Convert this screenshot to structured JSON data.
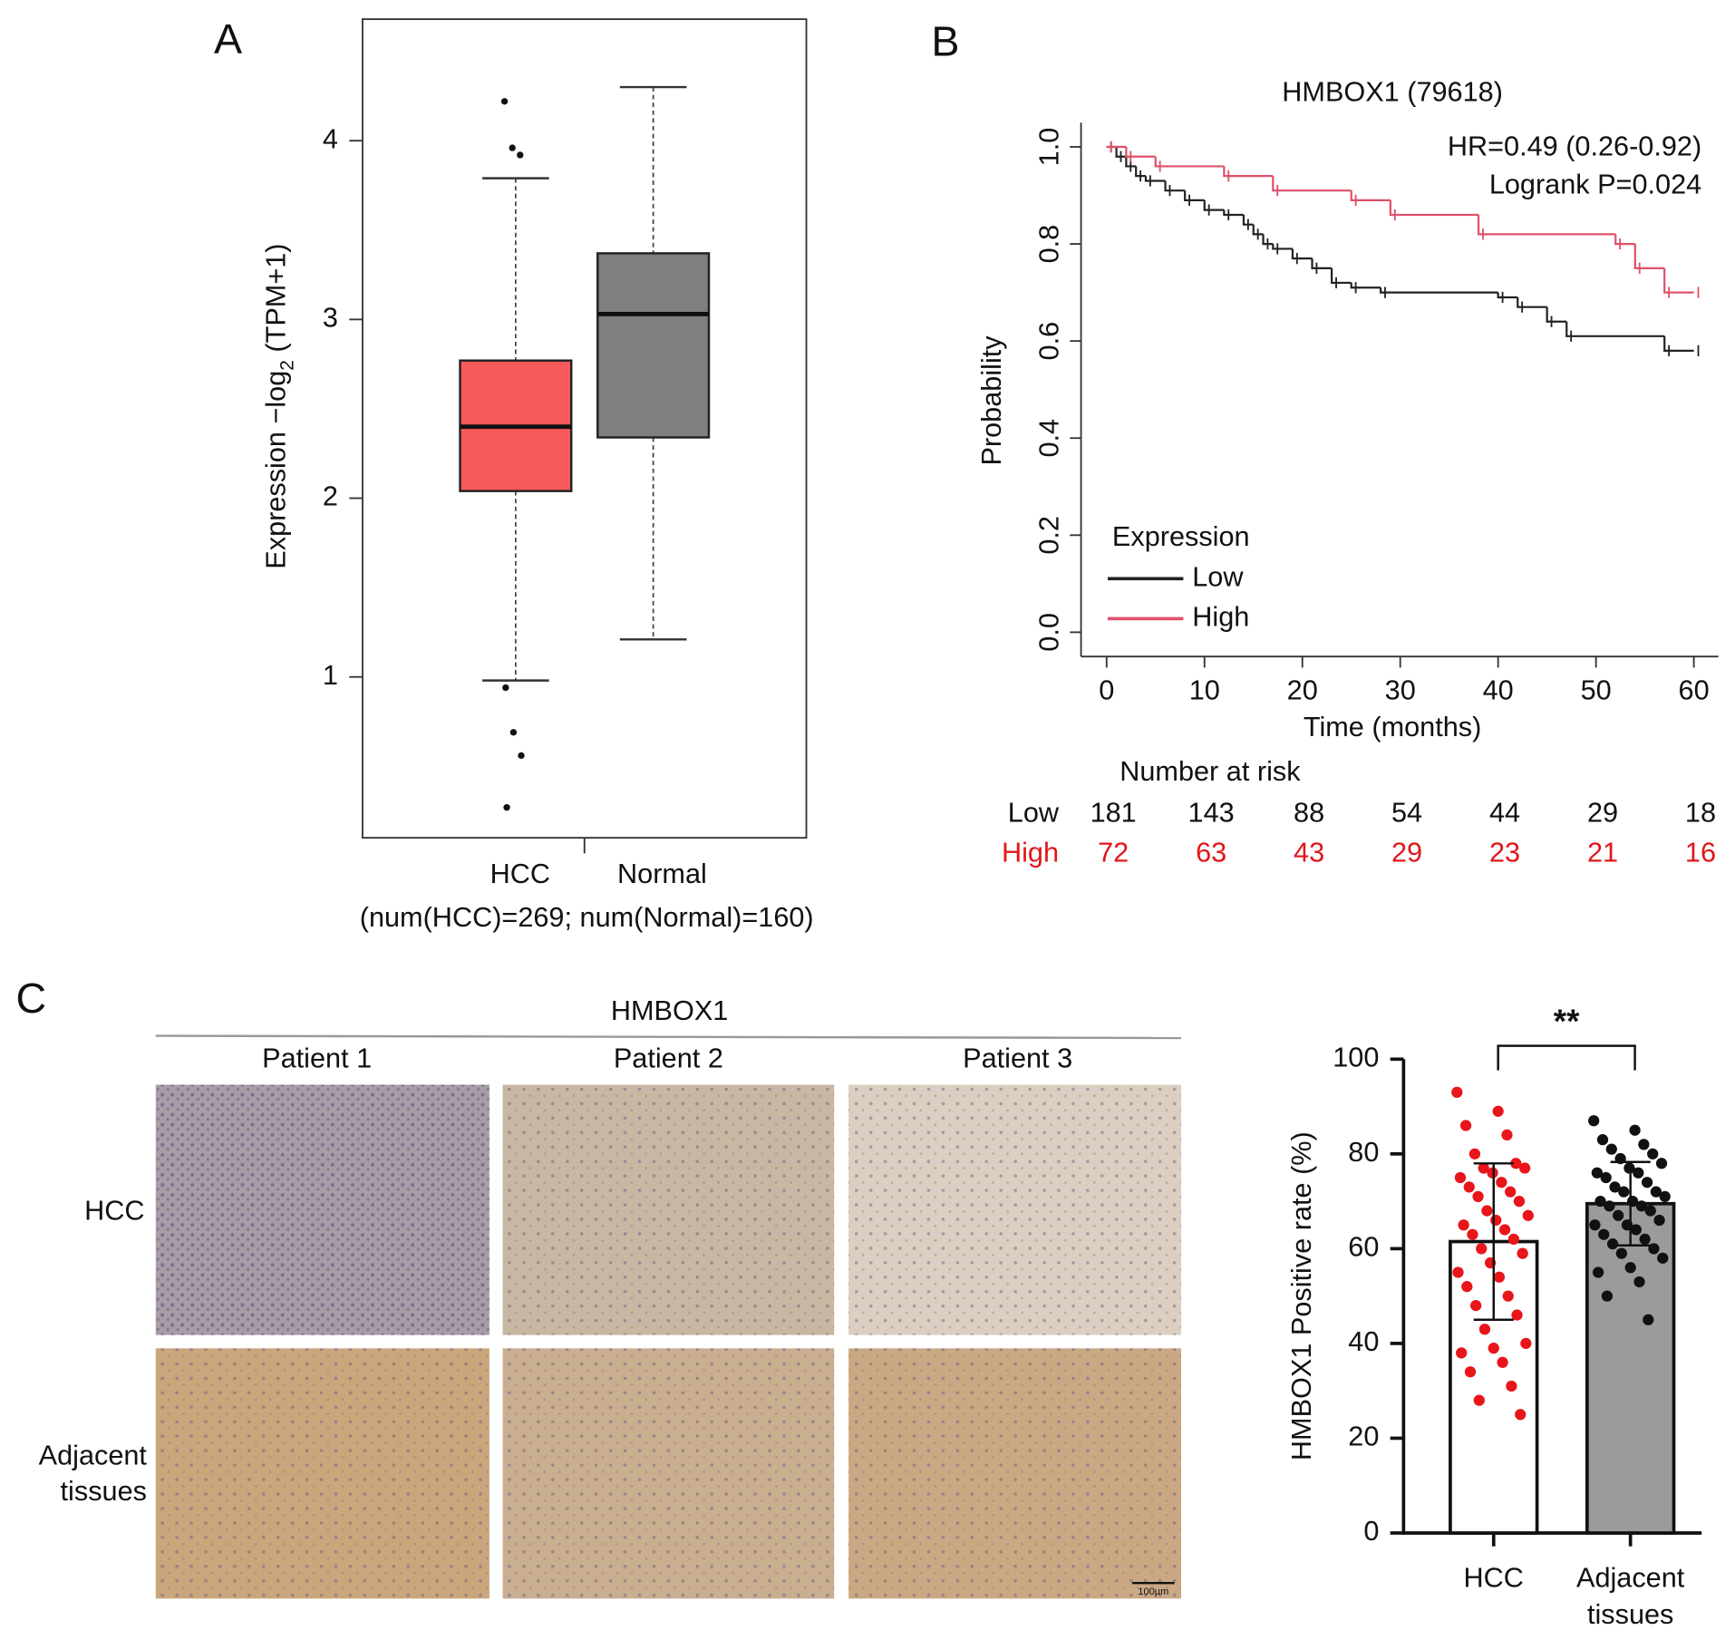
{
  "panel_labels": [
    "A",
    "B",
    "C"
  ],
  "image_panel": {
    "title": "HMBOX1",
    "columns": [
      "Patient 1",
      "Patient 2",
      "Patient 3"
    ],
    "rows": [
      [
        "HCC"
      ],
      [
        "Adjacent",
        "tissues"
      ]
    ],
    "scale_bar": "100µm"
  },
  "chart_data": [
    {
      "type": "box",
      "categories": [
        "HCC",
        "Normal"
      ],
      "xlabel": "(num(HCC)=269; num(Normal)=160)",
      "ylabel": [
        "Expression −log",
        "2",
        " (TPM+1)"
      ],
      "ylim": [
        0.1,
        4.68
      ],
      "yticks": [
        1,
        2,
        3,
        4
      ],
      "boxes": [
        {
          "whislo": 0.98,
          "q1": 2.04,
          "med": 2.4,
          "q3": 2.77,
          "whishi": 3.79,
          "fliers": [
            4.22,
            3.96,
            3.92,
            0.94,
            0.69,
            0.56,
            0.27
          ],
          "color": "#f8595b"
        },
        {
          "whislo": 1.21,
          "q1": 2.34,
          "med": 3.03,
          "q3": 3.37,
          "whishi": 4.3,
          "fliers": [],
          "color": "#7f7f7f"
        }
      ]
    },
    {
      "type": "km",
      "title": "HMBOX1 (79618)",
      "annotations": [
        "HR=0.49 (0.26-0.92)",
        "Logrank P=0.024"
      ],
      "xlabel": "Time (months)",
      "ylabel": "Probability",
      "xlim": [
        -2.6,
        62.5
      ],
      "ylim": [
        -0.05,
        1.05
      ],
      "xticks": [
        0,
        10,
        20,
        30,
        40,
        50,
        60
      ],
      "yticks": [
        {
          "value": 0,
          "label": "0.0"
        },
        {
          "value": 0.2,
          "label": "0.2"
        },
        {
          "value": 0.4,
          "label": "0.4"
        },
        {
          "value": 0.6,
          "label": "0.6"
        },
        {
          "value": 0.8,
          "label": "0.8"
        },
        {
          "value": 1,
          "label": "1.0"
        }
      ],
      "legend_title": "Expression",
      "legend": "lower left",
      "series": [
        {
          "name": "Low",
          "color": "#222222",
          "x": [
            0,
            1,
            2,
            3,
            4,
            6,
            8,
            10,
            12,
            14,
            15,
            16,
            17,
            19,
            21,
            23,
            25,
            28,
            40,
            42,
            45,
            47,
            57,
            60
          ],
          "values": [
            1.0,
            0.98,
            0.96,
            0.94,
            0.93,
            0.91,
            0.89,
            0.87,
            0.86,
            0.84,
            0.82,
            0.8,
            0.79,
            0.77,
            0.75,
            0.72,
            0.71,
            0.7,
            0.69,
            0.67,
            0.64,
            0.61,
            0.58,
            0.58
          ]
        },
        {
          "name": "High",
          "color": "#e0506a",
          "x": [
            0,
            2,
            5,
            12,
            17,
            25,
            29,
            38,
            52,
            54,
            57,
            60
          ],
          "values": [
            1.0,
            0.98,
            0.96,
            0.94,
            0.91,
            0.89,
            0.86,
            0.82,
            0.8,
            0.75,
            0.7,
            0.7
          ]
        }
      ],
      "risk_table": {
        "title": "Number at risk",
        "rows": [
          {
            "name": "Low",
            "color": "#111111",
            "values": [
              181,
              143,
              88,
              54,
              44,
              29,
              18
            ]
          },
          {
            "name": "High",
            "color": "#e0161b",
            "values": [
              72,
              63,
              43,
              29,
              23,
              21,
              16
            ]
          }
        ]
      }
    },
    {
      "type": "bar",
      "categories": [
        [
          "HCC"
        ],
        [
          "Adjacent",
          "tissues"
        ]
      ],
      "ylabel": "HMBOX1 Positive rate (%)",
      "ylim": [
        0,
        100
      ],
      "yticks": [
        0,
        20,
        40,
        60,
        80,
        100
      ],
      "values": [
        61.5,
        69.5
      ],
      "errors": [
        16.5,
        8.8
      ],
      "bar_colors": [
        "#ffffff",
        "#9b9b9e"
      ],
      "point_colors": [
        "#e8151b",
        "#111111"
      ],
      "significance": "**",
      "points": [
        [
          93,
          89,
          86,
          84,
          80,
          78,
          77,
          77,
          76,
          75,
          74,
          73,
          72,
          71,
          70,
          68,
          67,
          66,
          65,
          64,
          63,
          62,
          60,
          59,
          57,
          55,
          54,
          52,
          50,
          48,
          46,
          43,
          40,
          39,
          38,
          36,
          34,
          31,
          28,
          25
        ],
        [
          87,
          85,
          83,
          82,
          81,
          80,
          79,
          78,
          77,
          76,
          76,
          75,
          74,
          73,
          72,
          72,
          71,
          70,
          70,
          69,
          69,
          68,
          67,
          66,
          65,
          65,
          64,
          63,
          62,
          61,
          60,
          59,
          58,
          56,
          55,
          53,
          50,
          45
        ]
      ]
    }
  ]
}
